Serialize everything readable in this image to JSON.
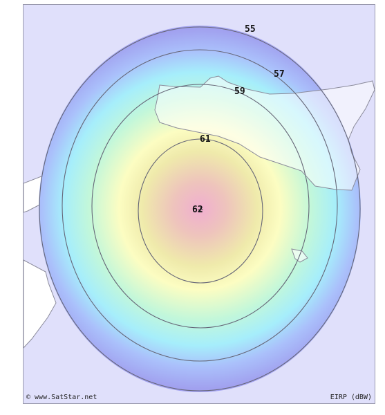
{
  "map": {
    "colors": {
      "background": "#e0e0fb",
      "land": "#ffffff",
      "land_stroke": "#8a8a9a",
      "contour_line": "#666677"
    },
    "contours": [
      {
        "label": "55",
        "level": 55
      },
      {
        "label": "57",
        "level": 57
      },
      {
        "label": "59",
        "level": 59
      },
      {
        "label": "61",
        "level": 61
      },
      {
        "label": "62",
        "level": 62
      }
    ],
    "beam_center_marker": "+"
  },
  "footer": {
    "copyright": "© www.SatStar.net",
    "units": "EIRP (dBW)"
  }
}
